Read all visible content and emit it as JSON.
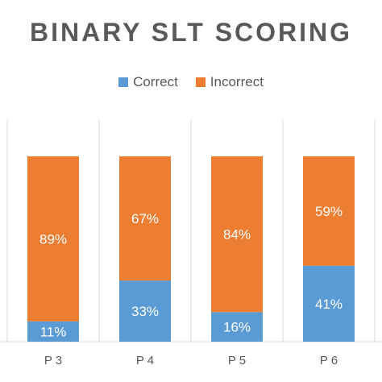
{
  "chart_data": {
    "type": "bar",
    "stacked": true,
    "percent": true,
    "title": "BINARY SLT SCORING",
    "categories": [
      "P3",
      "P4",
      "P5",
      "P6"
    ],
    "category_labels": [
      "P 3",
      "P 4",
      "P 5",
      "P 6"
    ],
    "series": [
      {
        "name": "Correct",
        "values": [
          11,
          33,
          16,
          41
        ],
        "labels": [
          "11%",
          "33%",
          "16%",
          "41%"
        ],
        "color": "#5B9BD5"
      },
      {
        "name": "Incorrect",
        "values": [
          89,
          67,
          84,
          59
        ],
        "labels": [
          "89%",
          "67%",
          "84%",
          "59%"
        ],
        "color": "#ED7D31"
      }
    ],
    "ylim": [
      0,
      100
    ],
    "legend_position": "top",
    "grid": "vertical category separators",
    "label_color": "#ffffff",
    "text_color": "#595959",
    "gridline_color": "#d9d9d9"
  }
}
